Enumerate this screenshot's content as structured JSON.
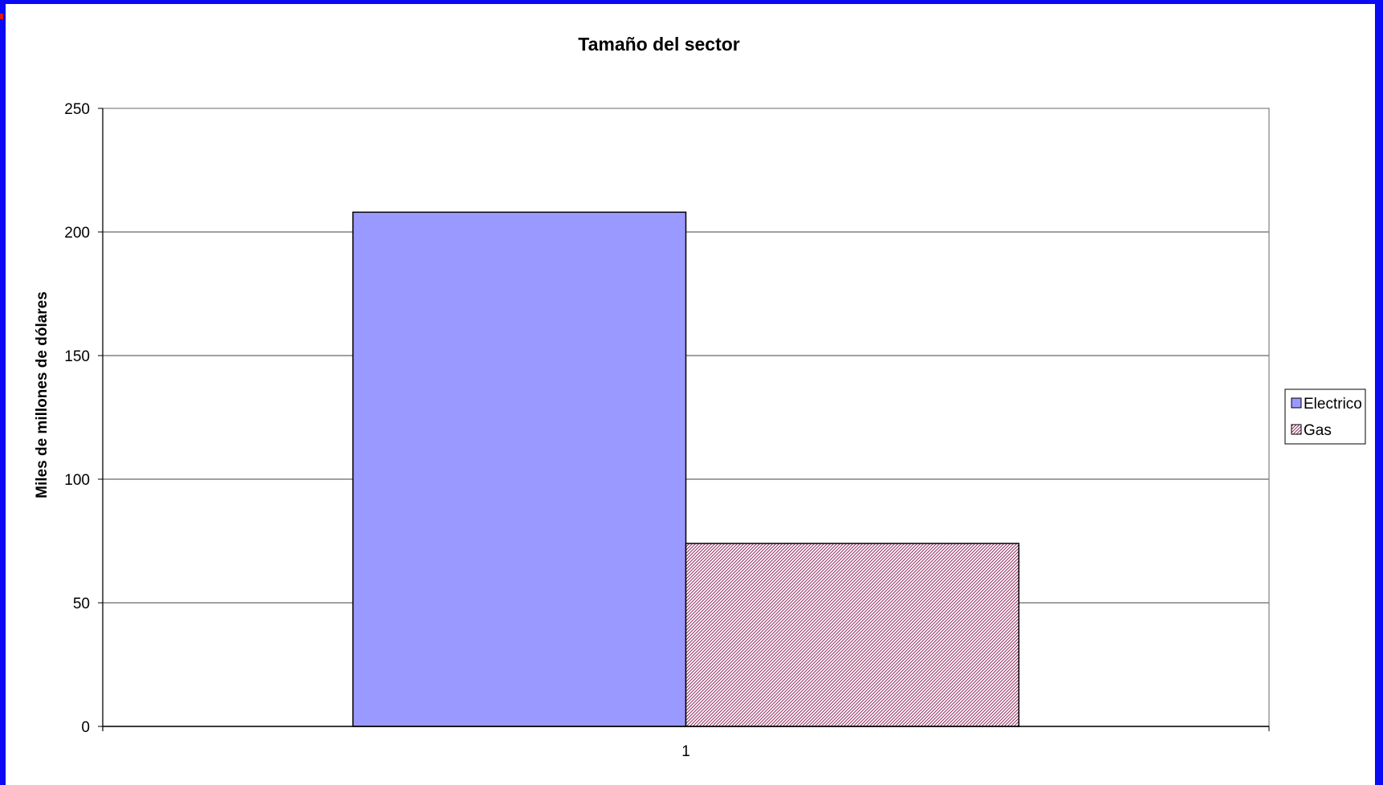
{
  "chart_data": {
    "type": "bar",
    "title": "Tamaño del sector",
    "xlabel": "",
    "ylabel": "Miles de millones de dólares",
    "categories": [
      "1"
    ],
    "series": [
      {
        "name": "Electrico",
        "values": [
          208
        ],
        "color": "#9999ff",
        "pattern": "solid"
      },
      {
        "name": "Gas",
        "values": [
          74
        ],
        "color": "#993366",
        "pattern": "diagonal-hatch"
      }
    ],
    "yticks": [
      "0",
      "50",
      "100",
      "150",
      "200",
      "250"
    ],
    "ylim": [
      0,
      250
    ],
    "grid": true,
    "legend_position": "right"
  },
  "colors": {
    "border": "#0a0af5",
    "background": "#ffffff",
    "gridline": "#000000"
  }
}
